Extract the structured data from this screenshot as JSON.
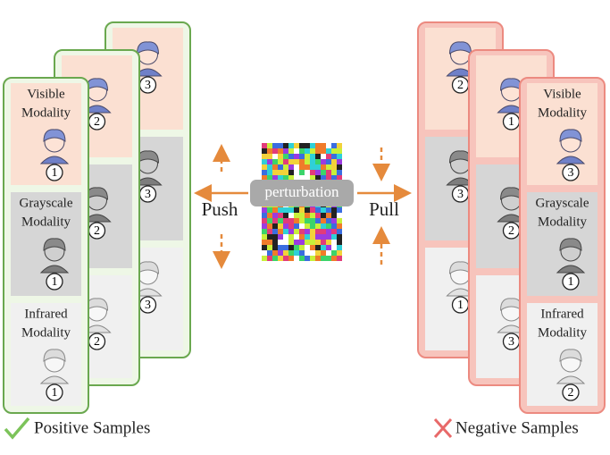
{
  "center": {
    "label": "perturbation",
    "push": "Push",
    "pull": "Pull"
  },
  "positive": {
    "caption": "Positive Samples",
    "cards": [
      {
        "ids": [
          3,
          3,
          3
        ]
      },
      {
        "ids": [
          2,
          2,
          2
        ]
      },
      {
        "labels": [
          [
            "Visible",
            "Modality"
          ],
          [
            "Grayscale",
            "Modality"
          ],
          [
            "Infrared",
            "Modality"
          ]
        ],
        "ids": [
          1,
          1,
          1
        ]
      }
    ]
  },
  "negative": {
    "caption": "Negative Samples",
    "cards": [
      {
        "ids": [
          2,
          3,
          1
        ]
      },
      {
        "ids": [
          1,
          2,
          3
        ]
      },
      {
        "labels": [
          [
            "Visible",
            "Modality"
          ],
          [
            "Grayscale",
            "Modality"
          ],
          [
            "Infrared",
            "Modality"
          ]
        ],
        "ids": [
          3,
          1,
          2
        ]
      }
    ]
  }
}
